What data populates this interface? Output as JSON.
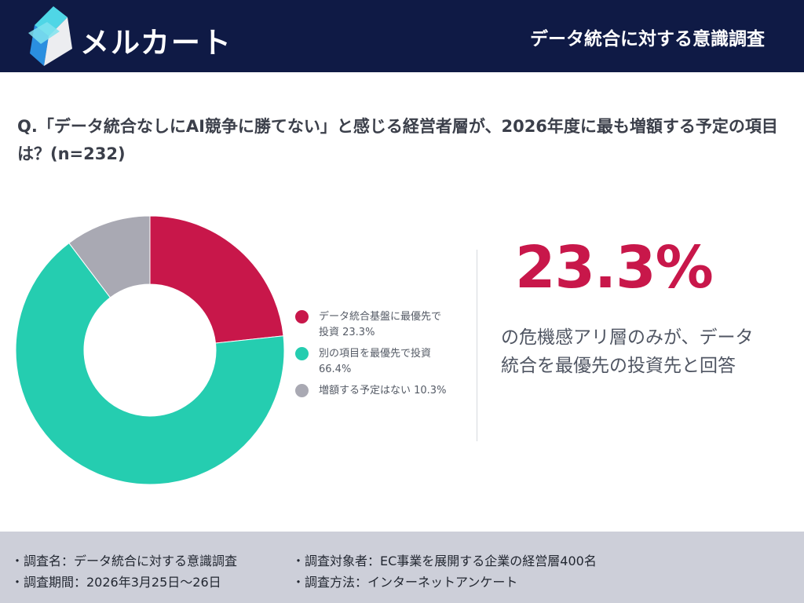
{
  "header": {
    "brand": "メルカート",
    "title": "データ統合に対する意識調査"
  },
  "question": "Q.「データ統合なしにAI競争に勝てない」と感じる経営者層が、2026年度に最も増額する予定の項目は？(n=232)",
  "chart_data": {
    "type": "pie",
    "variant": "donut",
    "categories": [
      "データ統合基盤に最優先で投資",
      "別の項目を最優先で投資",
      "増額する予定はない"
    ],
    "values": [
      23.3,
      66.4,
      10.3
    ],
    "colors": [
      "#c8174a",
      "#25cdb0",
      "#a9a9b3"
    ],
    "legend_placement": "right",
    "title": ""
  },
  "legend": [
    {
      "label": "データ統合基盤に最優先で\n投資 23.3%",
      "color": "#c8174a"
    },
    {
      "label": "別の項目を最優先で投資\n66.4%",
      "color": "#25cdb0"
    },
    {
      "label": "増額する予定はない 10.3%",
      "color": "#a9a9b3"
    }
  ],
  "highlight": {
    "value": "23.3%",
    "text": "の危機感アリ層のみが、データ\n統合を最優先の投資先と回答"
  },
  "footer": {
    "survey_name": "・調査名：データ統合に対する意識調査",
    "survey_target": "・調査対象者：EC事業を展開する企業の経営層400名",
    "survey_period": "・調査期間：2026年3月25日～26日",
    "survey_method": "・調査方法：インターネットアンケート"
  }
}
